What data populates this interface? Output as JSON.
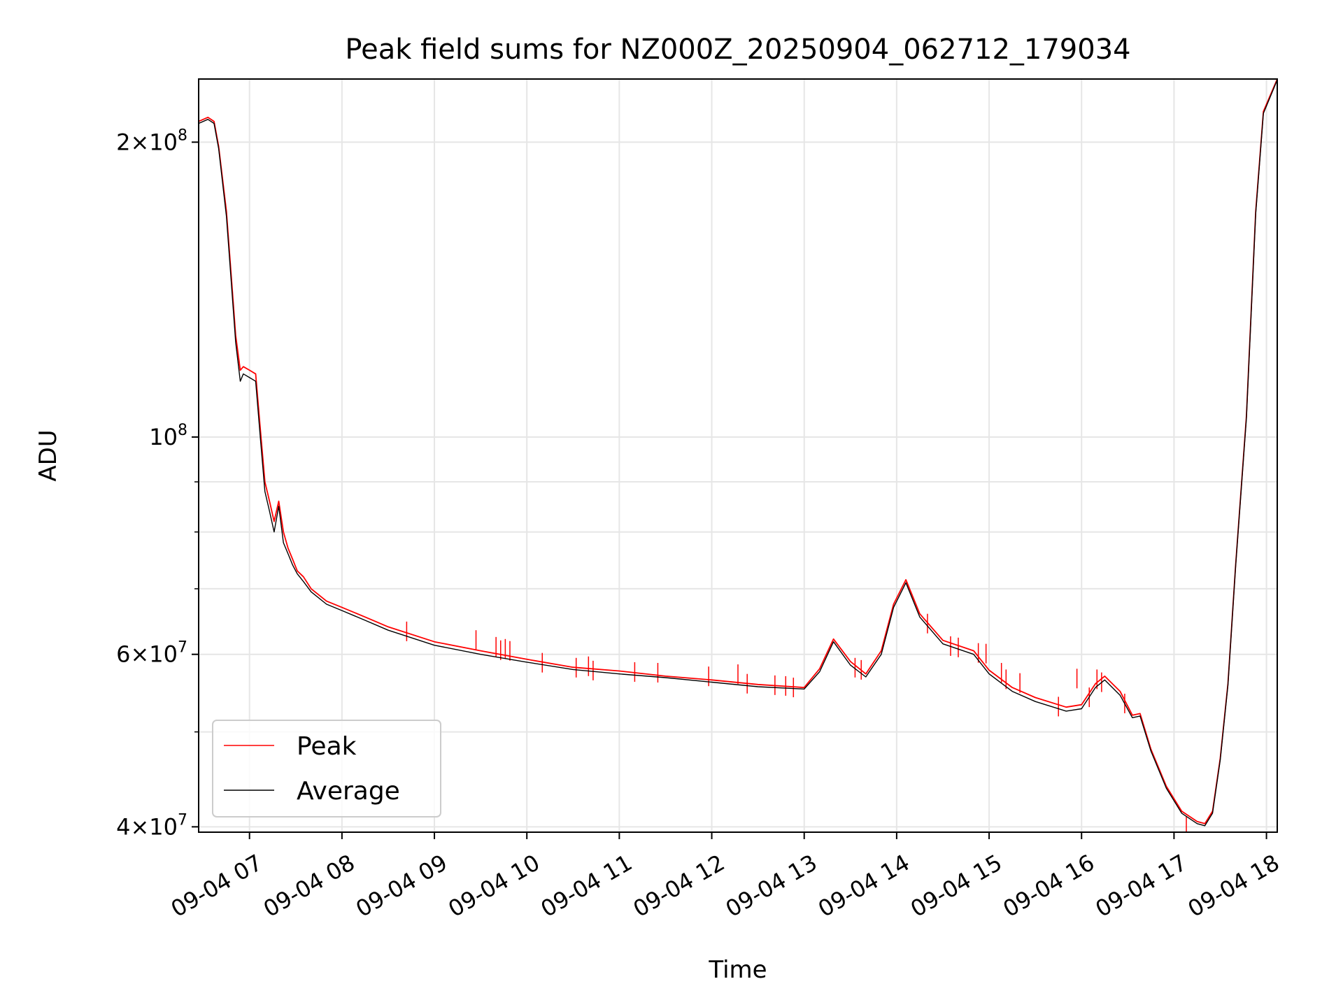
{
  "chart_data": {
    "type": "line",
    "title": "Peak field sums for NZ000Z_20250904_062712_179034",
    "xlabel": "Time",
    "ylabel": "ADU",
    "yscale": "log",
    "ylim": [
      39500000,
      232000000
    ],
    "xlim": [
      "2025-09-04 06:27",
      "2025-09-04 18:07"
    ],
    "grid": true,
    "legend": {
      "position": "lower-left",
      "entries": [
        "Peak",
        "Average"
      ]
    },
    "x_ticks": [
      {
        "label": "09-04 07",
        "time": "2025-09-04 07:00"
      },
      {
        "label": "09-04 08",
        "time": "2025-09-04 08:00"
      },
      {
        "label": "09-04 09",
        "time": "2025-09-04 09:00"
      },
      {
        "label": "09-04 10",
        "time": "2025-09-04 10:00"
      },
      {
        "label": "09-04 11",
        "time": "2025-09-04 11:00"
      },
      {
        "label": "09-04 12",
        "time": "2025-09-04 12:00"
      },
      {
        "label": "09-04 13",
        "time": "2025-09-04 13:00"
      },
      {
        "label": "09-04 14",
        "time": "2025-09-04 14:00"
      },
      {
        "label": "09-04 15",
        "time": "2025-09-04 15:00"
      },
      {
        "label": "09-04 16",
        "time": "2025-09-04 16:00"
      },
      {
        "label": "09-04 17",
        "time": "2025-09-04 17:00"
      },
      {
        "label": "09-04 18",
        "time": "2025-09-04 18:00"
      }
    ],
    "y_major_ticks": [
      {
        "value": 40000000,
        "base": "4×10",
        "exp": "7"
      },
      {
        "value": 60000000,
        "base": "6×10",
        "exp": "7"
      },
      {
        "value": 100000000,
        "base": "10",
        "exp": "8"
      },
      {
        "value": 200000000,
        "base": "2×10",
        "exp": "8"
      }
    ],
    "y_minor_ticks": [
      50000000,
      70000000,
      80000000,
      90000000
    ],
    "series": [
      {
        "name": "Peak",
        "color": "#ff0000",
        "x": [
          "2025-09-04 06:27",
          "2025-09-04 06:33",
          "2025-09-04 06:37",
          "2025-09-04 06:40",
          "2025-09-04 06:45",
          "2025-09-04 06:48",
          "2025-09-04 06:51",
          "2025-09-04 06:54",
          "2025-09-04 06:56",
          "2025-09-04 07:00",
          "2025-09-04 07:04",
          "2025-09-04 07:07",
          "2025-09-04 07:10",
          "2025-09-04 07:13",
          "2025-09-04 07:16",
          "2025-09-04 07:19",
          "2025-09-04 07:22",
          "2025-09-04 07:25",
          "2025-09-04 07:28",
          "2025-09-04 07:31",
          "2025-09-04 07:35",
          "2025-09-04 07:40",
          "2025-09-04 07:50",
          "2025-09-04 08:00",
          "2025-09-04 08:15",
          "2025-09-04 08:30",
          "2025-09-04 09:00",
          "2025-09-04 09:30",
          "2025-09-04 10:00",
          "2025-09-04 10:30",
          "2025-09-04 11:00",
          "2025-09-04 11:30",
          "2025-09-04 12:00",
          "2025-09-04 12:30",
          "2025-09-04 13:00",
          "2025-09-04 13:10",
          "2025-09-04 13:19",
          "2025-09-04 13:30",
          "2025-09-04 13:40",
          "2025-09-04 13:50",
          "2025-09-04 13:58",
          "2025-09-04 14:06",
          "2025-09-04 14:15",
          "2025-09-04 14:30",
          "2025-09-04 14:50",
          "2025-09-04 15:00",
          "2025-09-04 15:15",
          "2025-09-04 15:30",
          "2025-09-04 15:50",
          "2025-09-04 16:00",
          "2025-09-04 16:09",
          "2025-09-04 16:15",
          "2025-09-04 16:25",
          "2025-09-04 16:33",
          "2025-09-04 16:38",
          "2025-09-04 16:45",
          "2025-09-04 16:55",
          "2025-09-04 17:05",
          "2025-09-04 17:15",
          "2025-09-04 17:20",
          "2025-09-04 17:25",
          "2025-09-04 17:30",
          "2025-09-04 17:35",
          "2025-09-04 17:40",
          "2025-09-04 17:47",
          "2025-09-04 17:53",
          "2025-09-04 17:58",
          "2025-09-04 18:07"
        ],
        "y": [
          210000000,
          212000000,
          210000000,
          198000000,
          170000000,
          147000000,
          127000000,
          117000000,
          118000000,
          117000000,
          116000000,
          102000000,
          90000000,
          86000000,
          82000000,
          86000000,
          80000000,
          77000000,
          75000000,
          73000000,
          72000000,
          70000000,
          68000000,
          67000000,
          65500000,
          64000000,
          61800000,
          60500000,
          59300000,
          58200000,
          57700000,
          57000000,
          56500000,
          55900000,
          55500000,
          58000000,
          62200000,
          59000000,
          57300000,
          60500000,
          67500000,
          71500000,
          66000000,
          62000000,
          60500000,
          57800000,
          55500000,
          54200000,
          53000000,
          53300000,
          56000000,
          57000000,
          55000000,
          52000000,
          52200000,
          48000000,
          44000000,
          41500000,
          40500000,
          40300000,
          41500000,
          47000000,
          56000000,
          74000000,
          105000000,
          170000000,
          215000000,
          232000000
        ],
        "spikes": [
          {
            "t": "2025-09-04 08:42",
            "v": 64800000
          },
          {
            "t": "2025-09-04 09:27",
            "v": 63500000
          },
          {
            "t": "2025-09-04 09:40",
            "v": 62500000
          },
          {
            "t": "2025-09-04 09:43",
            "v": 62000000
          },
          {
            "t": "2025-09-04 09:46",
            "v": 62200000
          },
          {
            "t": "2025-09-04 09:49",
            "v": 61900000
          },
          {
            "t": "2025-09-04 10:10",
            "v": 60200000
          },
          {
            "t": "2025-09-04 10:32",
            "v": 59500000
          },
          {
            "t": "2025-09-04 10:40",
            "v": 59700000
          },
          {
            "t": "2025-09-04 10:43",
            "v": 59100000
          },
          {
            "t": "2025-09-04 11:10",
            "v": 58900000
          },
          {
            "t": "2025-09-04 11:25",
            "v": 58800000
          },
          {
            "t": "2025-09-04 11:58",
            "v": 58300000
          },
          {
            "t": "2025-09-04 12:17",
            "v": 58600000
          },
          {
            "t": "2025-09-04 12:23",
            "v": 57300000
          },
          {
            "t": "2025-09-04 12:41",
            "v": 57100000
          },
          {
            "t": "2025-09-04 12:48",
            "v": 57000000
          },
          {
            "t": "2025-09-04 12:53",
            "v": 56800000
          },
          {
            "t": "2025-09-04 13:33",
            "v": 59500000
          },
          {
            "t": "2025-09-04 13:37",
            "v": 59200000
          },
          {
            "t": "2025-09-04 14:20",
            "v": 66000000
          },
          {
            "t": "2025-09-04 14:35",
            "v": 62600000
          },
          {
            "t": "2025-09-04 14:40",
            "v": 62400000
          },
          {
            "t": "2025-09-04 14:53",
            "v": 61600000
          },
          {
            "t": "2025-09-04 14:58",
            "v": 61500000
          },
          {
            "t": "2025-09-04 15:08",
            "v": 58800000
          },
          {
            "t": "2025-09-04 15:11",
            "v": 57900000
          },
          {
            "t": "2025-09-04 15:20",
            "v": 57400000
          },
          {
            "t": "2025-09-04 15:45",
            "v": 54300000
          },
          {
            "t": "2025-09-04 15:57",
            "v": 58000000
          },
          {
            "t": "2025-09-04 16:05",
            "v": 55500000
          },
          {
            "t": "2025-09-04 16:10",
            "v": 57900000
          },
          {
            "t": "2025-09-04 16:13",
            "v": 57500000
          },
          {
            "t": "2025-09-04 16:28",
            "v": 54700000
          },
          {
            "t": "2025-09-04 17:08",
            "v": 41000000
          }
        ]
      },
      {
        "name": "Average",
        "color": "#000000",
        "x": [
          "2025-09-04 06:27",
          "2025-09-04 06:33",
          "2025-09-04 06:37",
          "2025-09-04 06:40",
          "2025-09-04 06:45",
          "2025-09-04 06:48",
          "2025-09-04 06:51",
          "2025-09-04 06:54",
          "2025-09-04 06:56",
          "2025-09-04 07:00",
          "2025-09-04 07:04",
          "2025-09-04 07:07",
          "2025-09-04 07:10",
          "2025-09-04 07:13",
          "2025-09-04 07:16",
          "2025-09-04 07:19",
          "2025-09-04 07:22",
          "2025-09-04 07:25",
          "2025-09-04 07:28",
          "2025-09-04 07:31",
          "2025-09-04 07:35",
          "2025-09-04 07:40",
          "2025-09-04 07:50",
          "2025-09-04 08:00",
          "2025-09-04 08:15",
          "2025-09-04 08:30",
          "2025-09-04 09:00",
          "2025-09-04 09:30",
          "2025-09-04 10:00",
          "2025-09-04 10:30",
          "2025-09-04 11:00",
          "2025-09-04 11:30",
          "2025-09-04 12:00",
          "2025-09-04 12:30",
          "2025-09-04 13:00",
          "2025-09-04 13:10",
          "2025-09-04 13:19",
          "2025-09-04 13:30",
          "2025-09-04 13:40",
          "2025-09-04 13:50",
          "2025-09-04 13:58",
          "2025-09-04 14:06",
          "2025-09-04 14:15",
          "2025-09-04 14:30",
          "2025-09-04 14:50",
          "2025-09-04 15:00",
          "2025-09-04 15:15",
          "2025-09-04 15:30",
          "2025-09-04 15:50",
          "2025-09-04 16:00",
          "2025-09-04 16:09",
          "2025-09-04 16:15",
          "2025-09-04 16:25",
          "2025-09-04 16:33",
          "2025-09-04 16:38",
          "2025-09-04 16:45",
          "2025-09-04 16:55",
          "2025-09-04 17:05",
          "2025-09-04 17:15",
          "2025-09-04 17:20",
          "2025-09-04 17:25",
          "2025-09-04 17:30",
          "2025-09-04 17:35",
          "2025-09-04 17:40",
          "2025-09-04 17:47",
          "2025-09-04 17:53",
          "2025-09-04 17:58",
          "2025-09-04 18:07"
        ],
        "y": [
          209000000,
          211000000,
          209000000,
          197000000,
          168000000,
          145000000,
          125000000,
          114000000,
          116000000,
          115000000,
          114000000,
          100000000,
          88000000,
          84000000,
          80000000,
          85000000,
          78000000,
          76000000,
          74000000,
          72500000,
          71200000,
          69500000,
          67500000,
          66500000,
          65000000,
          63500000,
          61300000,
          60000000,
          58900000,
          57900000,
          57300000,
          56800000,
          56200000,
          55600000,
          55300000,
          57600000,
          61800000,
          58500000,
          56900000,
          60000000,
          67000000,
          71000000,
          65500000,
          61500000,
          60000000,
          57300000,
          55000000,
          53700000,
          52500000,
          52800000,
          55500000,
          56500000,
          54500000,
          51700000,
          51900000,
          47800000,
          43800000,
          41300000,
          40300000,
          40100000,
          41300000,
          46800000,
          55800000,
          73800000,
          104500000,
          169000000,
          214000000,
          231500000
        ]
      }
    ]
  }
}
